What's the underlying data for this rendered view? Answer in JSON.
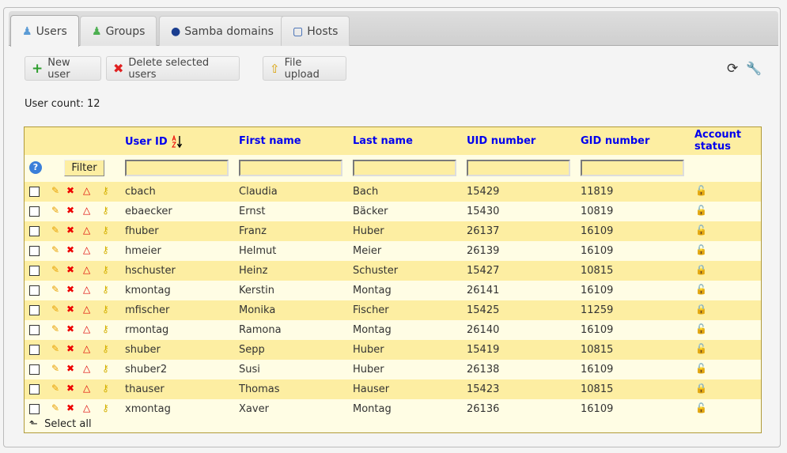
{
  "tabs": [
    {
      "label": "Users",
      "icon": "user-icon",
      "active": true
    },
    {
      "label": "Groups",
      "icon": "group-icon"
    },
    {
      "label": "Samba domains",
      "icon": "globe-icon"
    },
    {
      "label": "Hosts",
      "icon": "computer-icon"
    }
  ],
  "toolbar": {
    "new_user": "New user",
    "delete_selected": "Delete selected users",
    "file_upload": "File upload"
  },
  "user_count_label": "User count:",
  "user_count": "12",
  "table": {
    "headers": {
      "user_id": "User ID",
      "first_name": "First name",
      "last_name": "Last name",
      "uid": "UID number",
      "gid": "GID number",
      "status": "Account status"
    },
    "sort": "user-id-ascending",
    "filter_button": "Filter",
    "rows": [
      [
        "cbach",
        "Claudia",
        "Bach",
        "15429",
        "11819",
        "unlocked"
      ],
      [
        "ebaecker",
        "Ernst",
        "Bäcker",
        "15430",
        "10819",
        "unlocked"
      ],
      [
        "fhuber",
        "Franz",
        "Huber",
        "26137",
        "16109",
        "unlocked"
      ],
      [
        "hmeier",
        "Helmut",
        "Meier",
        "26139",
        "16109",
        "unlocked"
      ],
      [
        "hschuster",
        "Heinz",
        "Schuster",
        "15427",
        "10815",
        "locked"
      ],
      [
        "kmontag",
        "Kerstin",
        "Montag",
        "26141",
        "16109",
        "unlocked"
      ],
      [
        "mfischer",
        "Monika",
        "Fischer",
        "15425",
        "11259",
        "locked"
      ],
      [
        "rmontag",
        "Ramona",
        "Montag",
        "26140",
        "16109",
        "unlocked"
      ],
      [
        "shuber",
        "Sepp",
        "Huber",
        "15419",
        "10815",
        "unlocked"
      ],
      [
        "shuber2",
        "Susi",
        "Huber",
        "26138",
        "16109",
        "unlocked"
      ],
      [
        "thauser",
        "Thomas",
        "Hauser",
        "15423",
        "10815",
        "locked"
      ],
      [
        "xmontag",
        "Xaver",
        "Montag",
        "26136",
        "16109",
        "unlocked"
      ]
    ],
    "select_all": "Select all"
  },
  "colors": {
    "link": "#0000ee",
    "row_dark": "#fdeea2",
    "row_light": "#fffde4"
  }
}
